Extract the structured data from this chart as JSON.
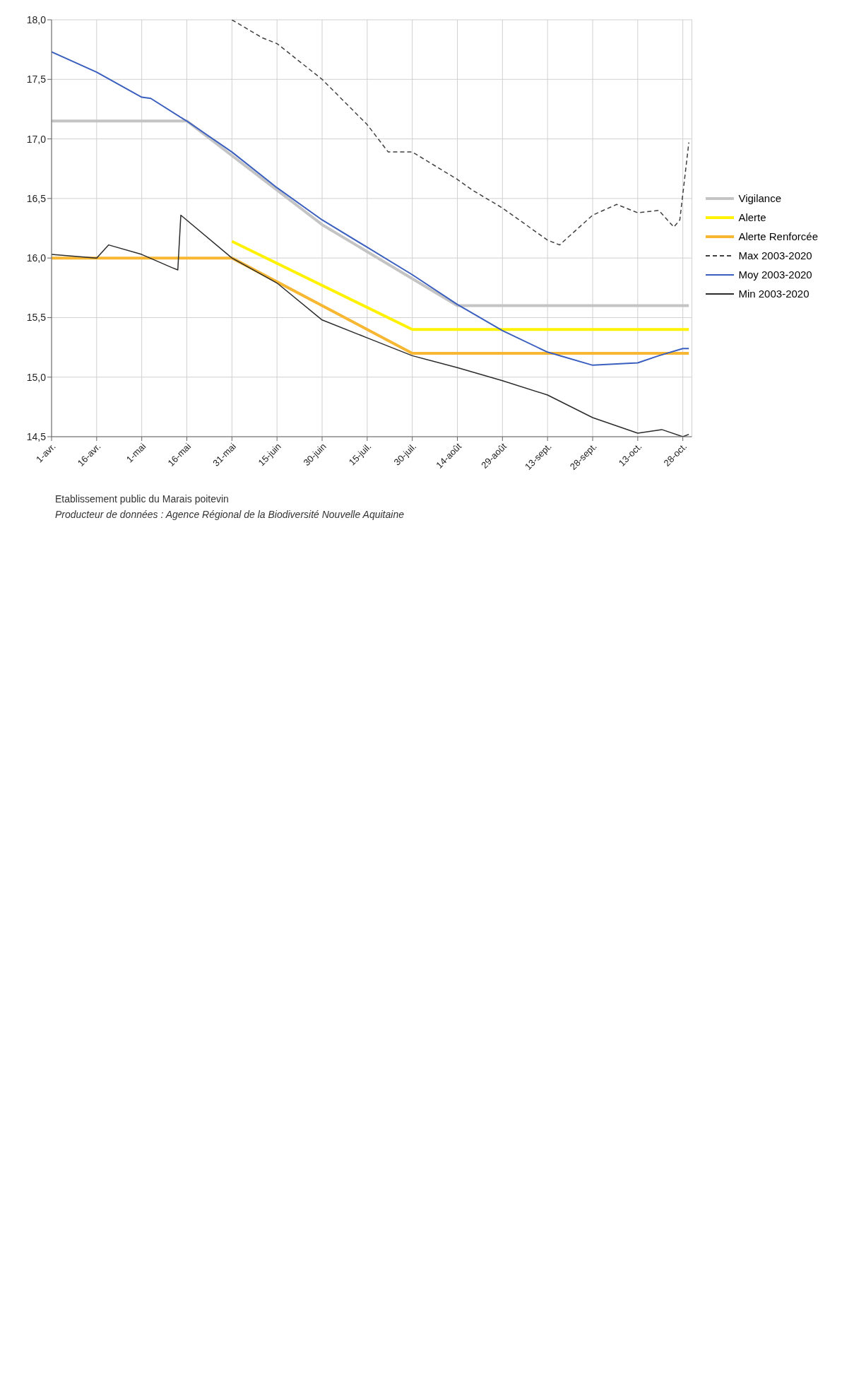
{
  "chart_data": {
    "type": "line",
    "xlim": [
      "--04-01",
      "--10-31"
    ],
    "xticks": [
      {
        "value": "--04-01",
        "label": "1-avr."
      },
      {
        "value": "--04-16",
        "label": "16-avr."
      },
      {
        "value": "--05-01",
        "label": "1-mai"
      },
      {
        "value": "--05-16",
        "label": "16-mai"
      },
      {
        "value": "--05-31",
        "label": "31-mai"
      },
      {
        "value": "--06-15",
        "label": "15-juin"
      },
      {
        "value": "--06-30",
        "label": "30-juin"
      },
      {
        "value": "--07-15",
        "label": "15-juil."
      },
      {
        "value": "--07-30",
        "label": "30-juil."
      },
      {
        "value": "--08-14",
        "label": "14-août"
      },
      {
        "value": "--08-29",
        "label": "29-août"
      },
      {
        "value": "--09-13",
        "label": "13-sept."
      },
      {
        "value": "--09-28",
        "label": "28-sept."
      },
      {
        "value": "--10-13",
        "label": "13-oct."
      },
      {
        "value": "--10-28",
        "label": "28-oct."
      }
    ],
    "ylim": [
      14.5,
      18
    ],
    "yticks": [
      {
        "value": 14.5,
        "label": "14,5"
      },
      {
        "value": 15,
        "label": "15,0"
      },
      {
        "value": 15.5,
        "label": "15,5"
      },
      {
        "value": 16,
        "label": "16,0"
      },
      {
        "value": 16.5,
        "label": "16,5"
      },
      {
        "value": 17,
        "label": "17,0"
      },
      {
        "value": 17.5,
        "label": "17,5"
      },
      {
        "value": 18,
        "label": "18,0"
      }
    ],
    "grid": true,
    "legend": "right",
    "marker": "none",
    "series": [
      {
        "name": "Vigilance",
        "color": "#c4c4c4",
        "line_style": "solid",
        "x": [
          "--04-01",
          "--05-16",
          "--06-30",
          "--08-14",
          "--10-30"
        ],
        "values": [
          17.15,
          17.15,
          16.28,
          15.6,
          15.6
        ]
      },
      {
        "name": "Alerte",
        "color": "#fff200",
        "line_style": "solid",
        "x": [
          "--05-31",
          "--07-30",
          "--10-30"
        ],
        "values": [
          16.14,
          15.4,
          15.4
        ]
      },
      {
        "name": "Alerte Renforcée",
        "color": "#f7b733",
        "line_style": "solid",
        "x": [
          "--04-01",
          "--05-31",
          "--07-30",
          "--10-30"
        ],
        "values": [
          16.0,
          16.0,
          15.2,
          15.2
        ]
      },
      {
        "name": "Max 2003-2020",
        "color": "#404040",
        "line_style": "dashed",
        "x": [
          "--05-31",
          "--06-04",
          "--06-10",
          "--06-15",
          "--06-30",
          "--07-15",
          "--07-22",
          "--07-30",
          "--08-14",
          "--08-19",
          "--08-29",
          "--09-13",
          "--09-17",
          "--09-28",
          "--10-06",
          "--10-13",
          "--10-20",
          "--10-25",
          "--10-27",
          "--10-30"
        ],
        "values": [
          18.0,
          17.94,
          17.85,
          17.8,
          17.5,
          17.12,
          16.89,
          16.89,
          16.66,
          16.57,
          16.42,
          16.15,
          16.11,
          16.36,
          16.45,
          16.38,
          16.4,
          16.26,
          16.32,
          16.97
        ]
      },
      {
        "name": "Moy 2003-2020",
        "color": "#3a5fbf",
        "line_style": "solid",
        "x": [
          "--04-01",
          "--04-16",
          "--05-01",
          "--05-04",
          "--05-14",
          "--05-16",
          "--05-31",
          "--06-15",
          "--06-30",
          "--07-15",
          "--07-30",
          "--08-14",
          "--08-29",
          "--09-13",
          "--09-28",
          "--10-13",
          "--10-20",
          "--10-28",
          "--10-30"
        ],
        "values": [
          17.73,
          17.56,
          17.35,
          17.34,
          17.18,
          17.15,
          16.89,
          16.59,
          16.32,
          16.09,
          15.86,
          15.61,
          15.39,
          15.21,
          15.1,
          15.12,
          15.18,
          15.24,
          15.24
        ]
      },
      {
        "name": "Min 2003-2020",
        "color": "#2b2b2b",
        "line_style": "solid",
        "x": [
          "--04-01",
          "--04-16",
          "--04-20",
          "--05-01",
          "--05-11",
          "--05-13",
          "--05-14",
          "--05-31",
          "--06-15",
          "--06-30",
          "--07-15",
          "--07-30",
          "--08-14",
          "--08-29",
          "--09-13",
          "--09-28",
          "--10-13",
          "--10-21",
          "--10-28",
          "--10-30"
        ],
        "values": [
          16.03,
          16.0,
          16.11,
          16.03,
          15.92,
          15.9,
          16.36,
          16.0,
          15.79,
          15.48,
          15.33,
          15.18,
          15.08,
          14.97,
          14.85,
          14.66,
          14.53,
          14.56,
          14.5,
          14.52
        ]
      }
    ],
    "annotations": [
      "Etablissement public du Marais poitevin",
      "Producteur de données : Agence Régional de la Biodiversité Nouvelle Aquitaine"
    ]
  }
}
